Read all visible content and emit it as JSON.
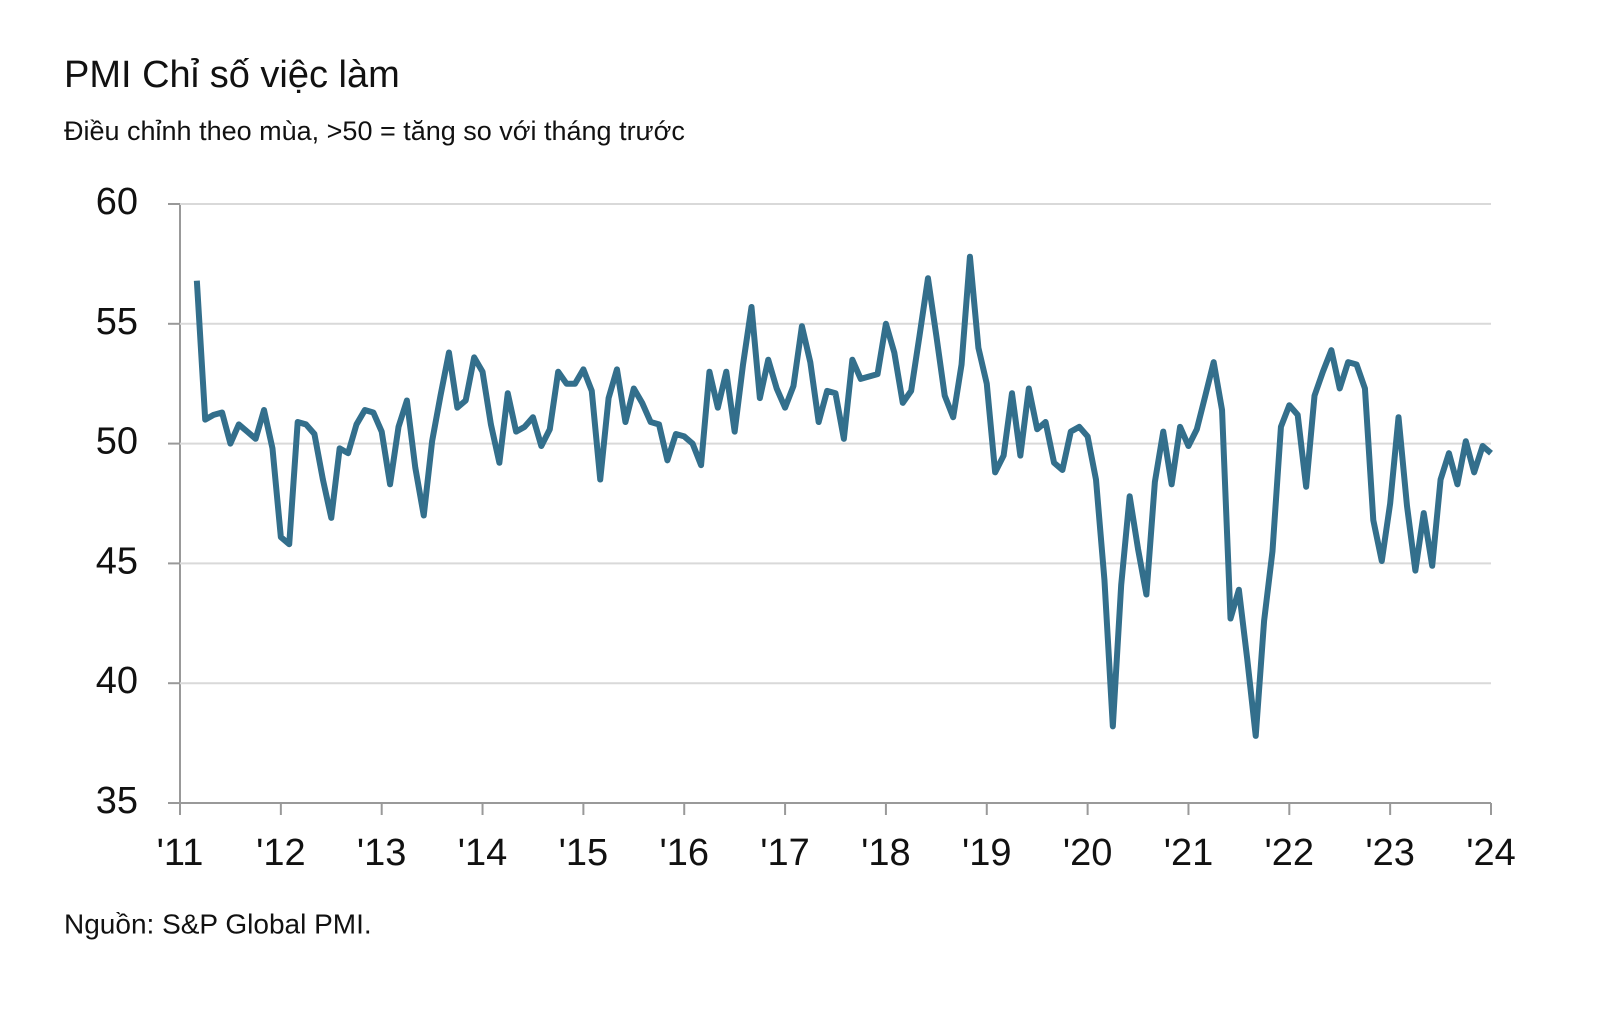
{
  "chart_data": {
    "type": "line",
    "title": "PMI Chỉ số việc làm",
    "subtitle": "Điều chỉnh theo mùa, >50 = tăng so với tháng trước",
    "source": "Nguồn: S&P Global PMI.",
    "x": [
      2011.167,
      2011.25,
      2011.333,
      2011.417,
      2011.5,
      2011.583,
      2011.667,
      2011.75,
      2011.833,
      2011.917,
      2012,
      2012.083,
      2012.167,
      2012.25,
      2012.333,
      2012.417,
      2012.5,
      2012.583,
      2012.667,
      2012.75,
      2012.833,
      2012.917,
      2013,
      2013.083,
      2013.167,
      2013.25,
      2013.333,
      2013.417,
      2013.5,
      2013.583,
      2013.667,
      2013.75,
      2013.833,
      2013.917,
      2014,
      2014.083,
      2014.167,
      2014.25,
      2014.333,
      2014.417,
      2014.5,
      2014.583,
      2014.667,
      2014.75,
      2014.833,
      2014.917,
      2015,
      2015.083,
      2015.167,
      2015.25,
      2015.333,
      2015.417,
      2015.5,
      2015.583,
      2015.667,
      2015.75,
      2015.833,
      2015.917,
      2016,
      2016.083,
      2016.167,
      2016.25,
      2016.333,
      2016.417,
      2016.5,
      2016.583,
      2016.667,
      2016.75,
      2016.833,
      2016.917,
      2017,
      2017.083,
      2017.167,
      2017.25,
      2017.333,
      2017.417,
      2017.5,
      2017.583,
      2017.667,
      2017.75,
      2017.833,
      2017.917,
      2018,
      2018.083,
      2018.167,
      2018.25,
      2018.333,
      2018.417,
      2018.5,
      2018.583,
      2018.667,
      2018.75,
      2018.833,
      2018.917,
      2019,
      2019.083,
      2019.167,
      2019.25,
      2019.333,
      2019.417,
      2019.5,
      2019.583,
      2019.667,
      2019.75,
      2019.833,
      2019.917,
      2020,
      2020.083,
      2020.167,
      2020.25,
      2020.333,
      2020.417,
      2020.5,
      2020.583,
      2020.667,
      2020.75,
      2020.833,
      2020.917,
      2021,
      2021.083,
      2021.167,
      2021.25,
      2021.333,
      2021.417,
      2021.5,
      2021.583,
      2021.667,
      2021.75,
      2021.833,
      2021.917,
      2022,
      2022.083,
      2022.167,
      2022.25,
      2022.333,
      2022.417,
      2022.5,
      2022.583,
      2022.667,
      2022.75,
      2022.833,
      2022.917,
      2023,
      2023.083,
      2023.167,
      2023.25,
      2023.333,
      2023.417,
      2023.5,
      2023.583,
      2023.667,
      2023.75,
      2023.833,
      2023.917,
      2024
    ],
    "series": [
      {
        "color": "#336f8c",
        "values": [
          56.8,
          51.0,
          51.2,
          51.3,
          50.0,
          50.8,
          50.5,
          50.2,
          51.4,
          49.8,
          46.1,
          45.8,
          50.9,
          50.8,
          50.4,
          48.5,
          46.9,
          49.8,
          49.6,
          50.8,
          51.4,
          51.3,
          50.5,
          48.3,
          50.7,
          51.8,
          49.0,
          47.0,
          50.1,
          52.0,
          53.8,
          51.5,
          51.8,
          53.6,
          53.0,
          50.8,
          49.2,
          52.1,
          50.5,
          50.7,
          51.1,
          49.9,
          50.6,
          53.0,
          52.5,
          52.5,
          53.1,
          52.2,
          48.5,
          51.9,
          53.1,
          50.9,
          52.3,
          51.7,
          50.9,
          50.8,
          49.3,
          50.4,
          50.3,
          50.0,
          49.1,
          53.0,
          51.5,
          53.0,
          50.5,
          53.3,
          55.7,
          51.9,
          53.5,
          52.3,
          51.5,
          52.4,
          54.9,
          53.4,
          50.9,
          52.2,
          52.1,
          50.2,
          53.5,
          52.7,
          52.8,
          52.9,
          55.0,
          53.8,
          51.7,
          52.2,
          54.5,
          56.9,
          54.5,
          52.0,
          51.1,
          53.3,
          57.8,
          54.0,
          52.5,
          48.8,
          49.5,
          52.1,
          49.5,
          52.3,
          50.6,
          50.9,
          49.2,
          48.9,
          50.5,
          50.7,
          50.3,
          48.5,
          44.3,
          38.2,
          44.1,
          47.8,
          45.6,
          43.7,
          48.4,
          50.5,
          48.3,
          50.7,
          49.9,
          50.6,
          52.0,
          53.4,
          51.4,
          42.7,
          43.9,
          41.0,
          37.8,
          42.6,
          45.5,
          50.7,
          51.6,
          51.2,
          48.2,
          52.0,
          53.0,
          53.9,
          52.3,
          53.4,
          53.3,
          52.3,
          46.8,
          45.1,
          47.5,
          51.1,
          47.4,
          44.7,
          47.1,
          44.9,
          48.5,
          49.6,
          48.3,
          50.1,
          48.8,
          49.9,
          49.6
        ]
      }
    ],
    "xlim": [
      2011,
      2024
    ],
    "xticks": [
      {
        "value": 2011,
        "label": "'11"
      },
      {
        "value": 2012,
        "label": "'12"
      },
      {
        "value": 2013,
        "label": "'13"
      },
      {
        "value": 2014,
        "label": "'14"
      },
      {
        "value": 2015,
        "label": "'15"
      },
      {
        "value": 2016,
        "label": "'16"
      },
      {
        "value": 2017,
        "label": "'17"
      },
      {
        "value": 2018,
        "label": "'18"
      },
      {
        "value": 2019,
        "label": "'19"
      },
      {
        "value": 2020,
        "label": "'20"
      },
      {
        "value": 2021,
        "label": "'21"
      },
      {
        "value": 2022,
        "label": "'22"
      },
      {
        "value": 2023,
        "label": "'23"
      },
      {
        "value": 2024,
        "label": "'24"
      }
    ],
    "ylim": [
      35,
      60
    ],
    "yticks": [
      35,
      40,
      45,
      50,
      55,
      60
    ],
    "grid": true
  }
}
